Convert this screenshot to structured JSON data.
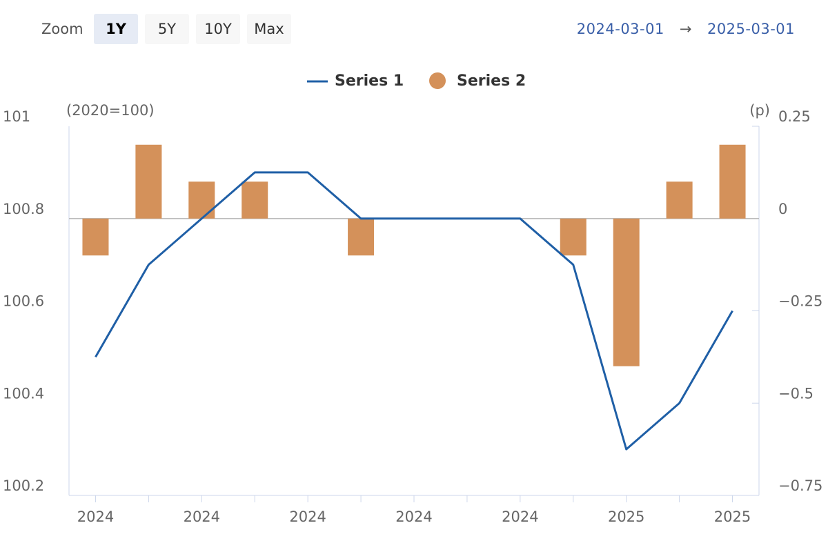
{
  "toolbar": {
    "zoom_label": "Zoom",
    "buttons": [
      "1Y",
      "5Y",
      "10Y",
      "Max"
    ],
    "active": 0,
    "range": {
      "from": "2024-03-01",
      "separator": "→",
      "to": "2025-03-01"
    }
  },
  "chart_data": {
    "type": "combo",
    "categories": [
      "2024",
      null,
      "2024",
      null,
      "2024",
      null,
      "2024",
      null,
      "2024",
      null,
      "2025",
      null,
      "2025"
    ],
    "series": [
      {
        "name": "Series 1",
        "type": "line",
        "color": "#1f5fa6",
        "values": [
          100.5,
          100.7,
          100.8,
          100.9,
          100.9,
          100.8,
          100.8,
          100.8,
          100.8,
          100.7,
          100.3,
          100.4,
          100.6
        ]
      },
      {
        "name": "Series 2",
        "type": "bar",
        "axis": "y2",
        "color": "#d4915a",
        "values": [
          -0.1,
          0.2,
          0.1,
          0.1,
          0,
          -0.1,
          0,
          0,
          0,
          -0.1,
          -0.4,
          0.1,
          0.2
        ]
      }
    ],
    "y_label": "(2020=100)",
    "y2_label": "(p)",
    "ylim": [
      100.2,
      101
    ],
    "yticks": [
      101,
      100.8,
      100.6,
      100.4,
      100.2
    ],
    "y2lim": [
      -0.75,
      0.25
    ],
    "y2ticks": [
      0.25,
      0,
      {
        "value": -0.25,
        "label": "−0.25"
      },
      {
        "value": -0.5,
        "label": "−0.5"
      },
      {
        "value": -0.75,
        "label": "−0.75"
      }
    ],
    "legend": "top"
  }
}
